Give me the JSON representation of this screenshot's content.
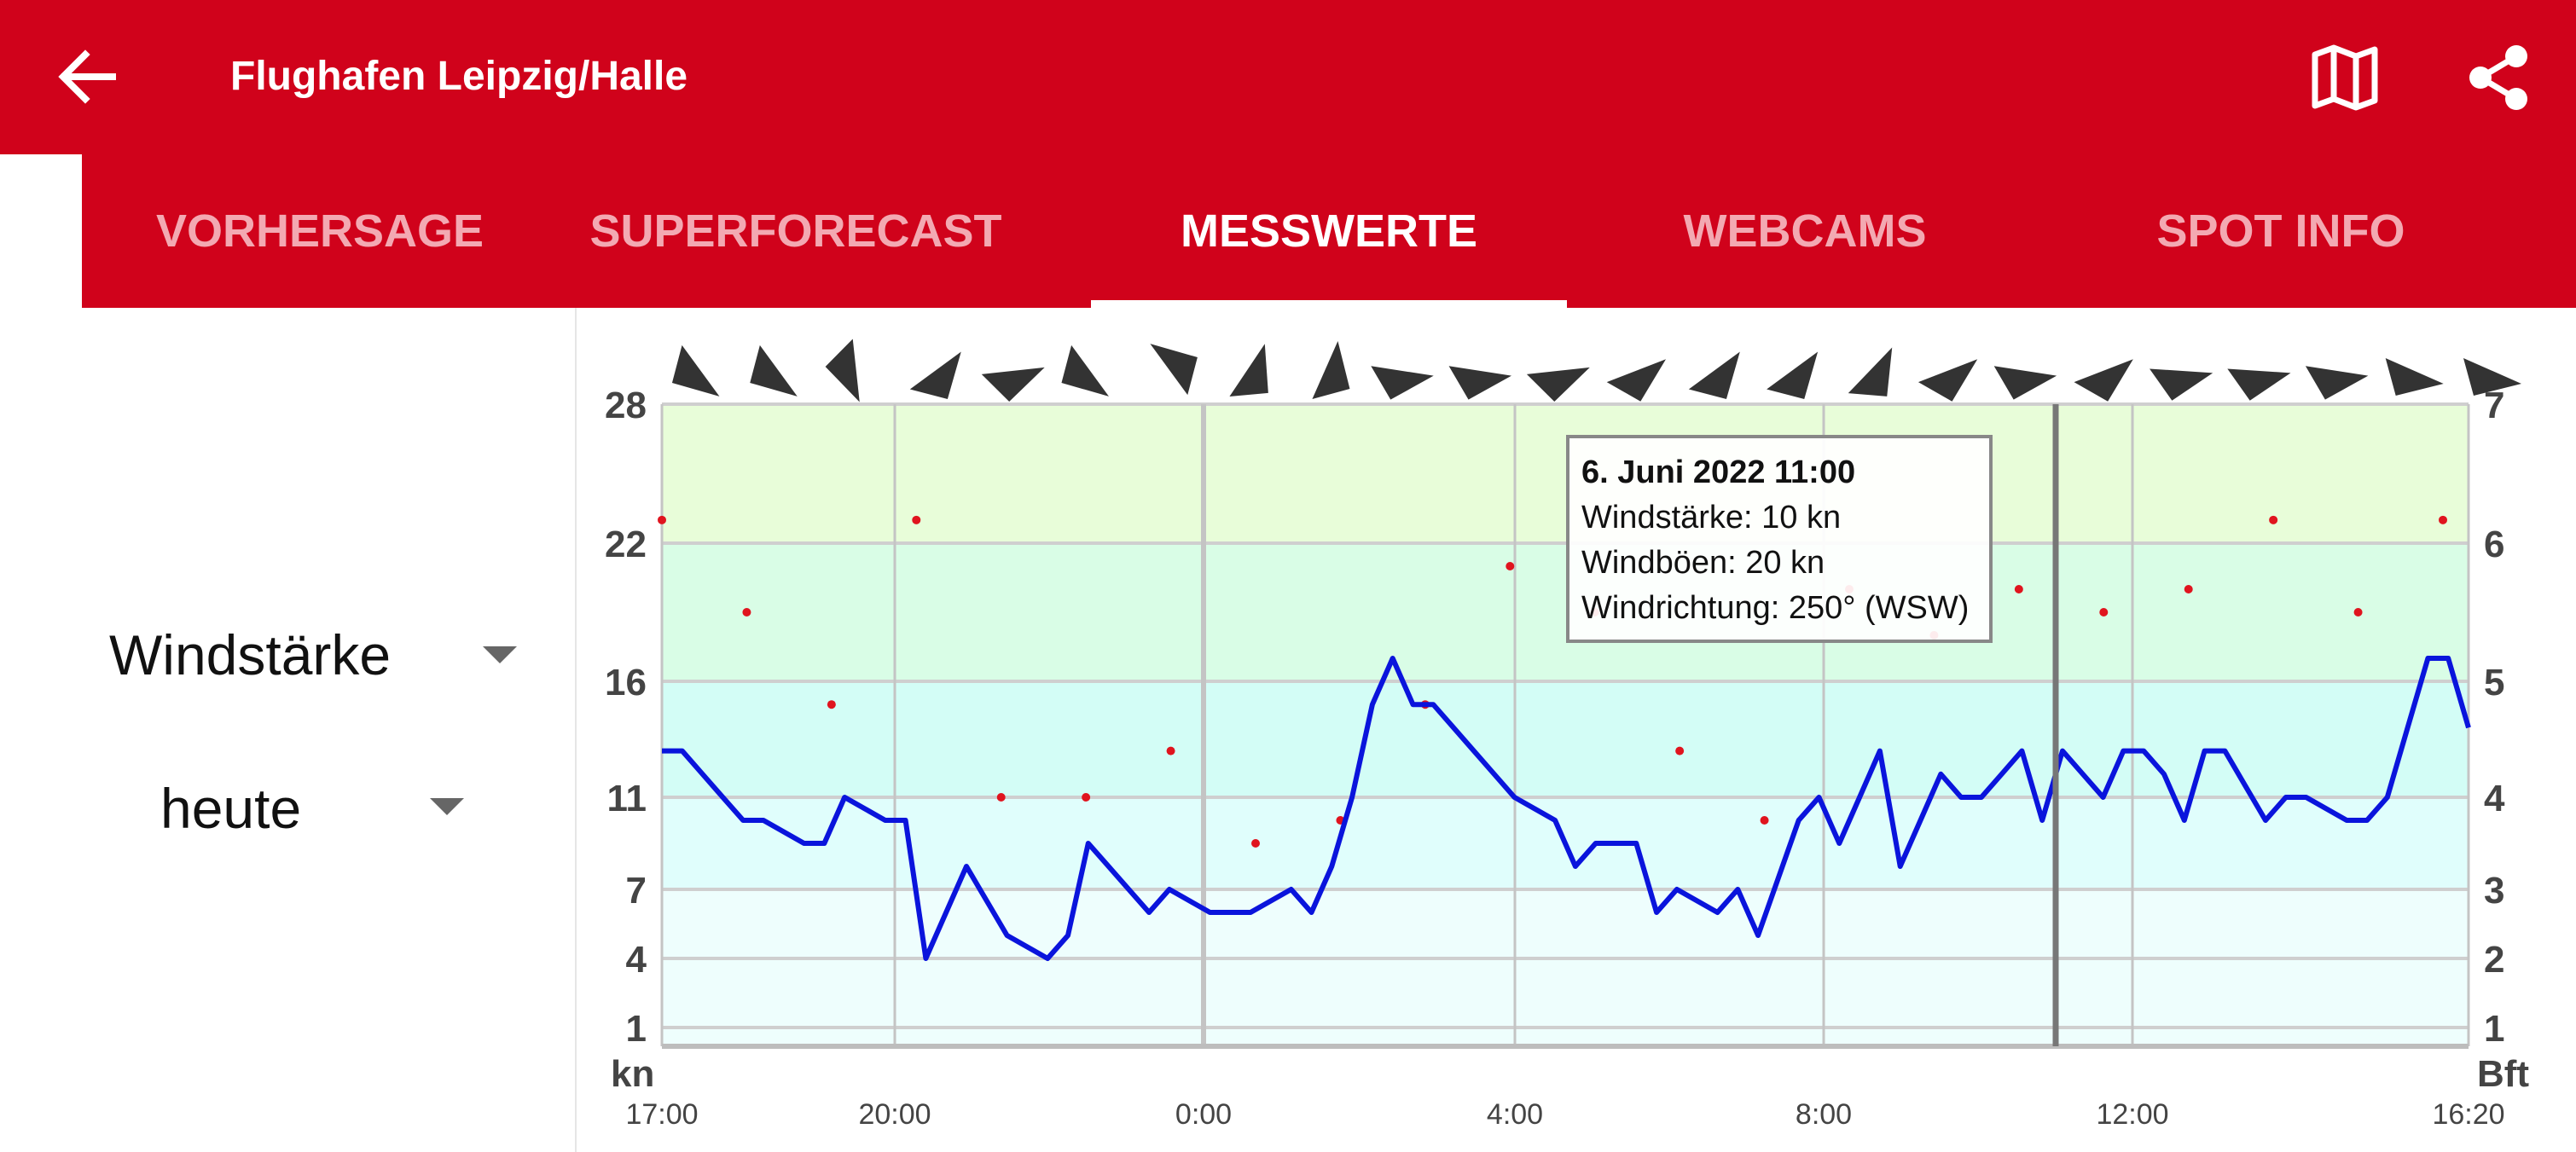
{
  "header": {
    "title": "Flughafen Leipzig/Halle",
    "back_icon": "arrow-left-icon",
    "map_icon": "map-icon",
    "share_icon": "share-icon",
    "bar_color": "#d0021b"
  },
  "tabs": [
    {
      "label": "VORHERSAGE",
      "active": false
    },
    {
      "label": "SUPERFORECAST",
      "active": false
    },
    {
      "label": "MESSWERTE",
      "active": true
    },
    {
      "label": "WEBCAMS",
      "active": false
    },
    {
      "label": "SPOT INFO",
      "active": false
    }
  ],
  "controls": {
    "parameter_select": "Windstärke",
    "period_select": "heute"
  },
  "chart_data": {
    "type": "line",
    "x_tick_labels": [
      "17:00",
      "20:00",
      "0:00",
      "4:00",
      "8:00",
      "12:00",
      "16:20"
    ],
    "y_left_unit": "kn",
    "y_left_ticks": [
      28,
      22,
      16,
      11,
      7,
      4,
      1
    ],
    "y_right_unit": "Bft",
    "y_right_ticks": [
      7,
      6,
      5,
      4,
      3,
      2,
      1
    ],
    "ylim": [
      0,
      28
    ],
    "series": [
      {
        "type": "line",
        "color": "#0a14dc",
        "values": [
          13,
          13,
          12,
          11,
          10,
          10,
          9.5,
          9,
          9,
          11,
          10.5,
          10,
          10,
          4,
          6,
          8,
          6.5,
          5,
          4.5,
          4,
          5,
          9,
          8,
          7,
          6,
          7,
          6.5,
          6,
          6,
          6,
          6.5,
          7,
          6,
          8,
          11,
          15,
          17,
          15,
          15,
          14,
          13,
          12,
          11,
          10.5,
          10,
          8,
          9,
          9,
          9,
          6,
          7,
          6.5,
          6,
          7,
          5,
          7.5,
          10,
          11,
          9,
          11,
          13,
          8,
          10,
          12,
          11,
          11,
          12,
          13,
          10,
          13,
          12,
          11,
          13,
          13,
          12,
          10,
          13,
          13,
          11.5,
          10,
          11,
          11,
          10.5,
          10,
          10,
          11,
          14,
          17,
          17,
          14
        ]
      },
      {
        "type": "points",
        "color": "#e0141e",
        "values": [
          23,
          19,
          15,
          23,
          11,
          11,
          13,
          9,
          10,
          15,
          21,
          19,
          13,
          10,
          20,
          18,
          20,
          19,
          20,
          23,
          19,
          23
        ]
      }
    ],
    "arrow_rotations_deg": [
      30,
      30,
      60,
      -60,
      -30,
      30,
      -150,
      -80,
      -90,
      -15,
      -15,
      -30,
      -45,
      -60,
      -60,
      -70,
      -45,
      -15,
      -45,
      -20,
      -20,
      -15,
      0,
      0
    ],
    "tooltip": {
      "title": "6. Juni 2022 11:00",
      "line1": "Windstärke: 10 kn",
      "line2": "Windböen: 20 kn",
      "line3": "Windrichtung: 250° (WSW)"
    },
    "bands": [
      "#e8fdd9",
      "#d9fde6",
      "#d3fdf6",
      "#e0fefc",
      "#eefefd"
    ],
    "grid": true
  }
}
